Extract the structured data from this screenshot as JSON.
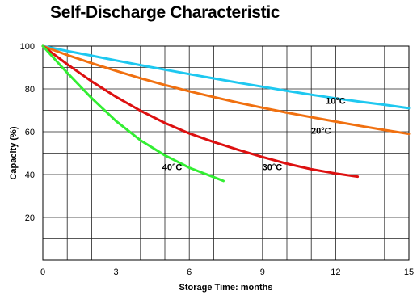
{
  "chart_data": {
    "type": "line",
    "title": "Self-Discharge Characteristic",
    "xlabel": "Storage Time: months",
    "ylabel": "Capacity (%)",
    "xlim": [
      0,
      15
    ],
    "ylim": [
      0,
      100
    ],
    "xticks": [
      0,
      3,
      6,
      9,
      12,
      15
    ],
    "yticks": [
      20,
      40,
      60,
      80,
      100
    ],
    "grid": true,
    "series": [
      {
        "name": "10°C",
        "color": "#1ec8f0",
        "x": [
          0,
          1,
          2,
          3,
          4,
          5,
          6,
          7,
          8,
          9,
          10,
          11,
          12,
          13,
          14,
          15
        ],
        "values": [
          100,
          97.7,
          95.5,
          93.3,
          91.1,
          89.0,
          86.9,
          84.9,
          82.9,
          81.0,
          79.1,
          77.3,
          75.6,
          74.0,
          72.6,
          71.0
        ]
      },
      {
        "name": "20°C",
        "color": "#f07010",
        "x": [
          0,
          1,
          2,
          3,
          4,
          5,
          6,
          7,
          8,
          9,
          10,
          11,
          12,
          13,
          14,
          15
        ],
        "values": [
          100,
          95.8,
          92.0,
          88.4,
          85.0,
          81.8,
          78.9,
          76.2,
          73.6,
          71.2,
          68.9,
          66.8,
          64.7,
          62.7,
          60.8,
          59.0
        ]
      },
      {
        "name": "30°C",
        "color": "#dd1010",
        "x": [
          0,
          1,
          2,
          3,
          4,
          5,
          6,
          7,
          8,
          9,
          10,
          11,
          12,
          12.9
        ],
        "values": [
          100,
          91.5,
          83.5,
          76.3,
          69.8,
          64.1,
          59.2,
          55.2,
          51.6,
          48.2,
          45.1,
          42.5,
          40.5,
          39.0
        ]
      },
      {
        "name": "40°C",
        "color": "#33ee33",
        "x": [
          0,
          1,
          2,
          3,
          4,
          5,
          6,
          7,
          7.4
        ],
        "values": [
          100,
          87.5,
          75.7,
          65.0,
          56.0,
          49.0,
          43.2,
          38.8,
          37.0
        ]
      }
    ],
    "labels": [
      {
        "text": "10°C",
        "x": 12.0,
        "y": 73
      },
      {
        "text": "20°C",
        "x": 11.4,
        "y": 59
      },
      {
        "text": "30°C",
        "x": 9.4,
        "y": 42
      },
      {
        "text": "40°C",
        "x": 5.3,
        "y": 42
      }
    ]
  }
}
